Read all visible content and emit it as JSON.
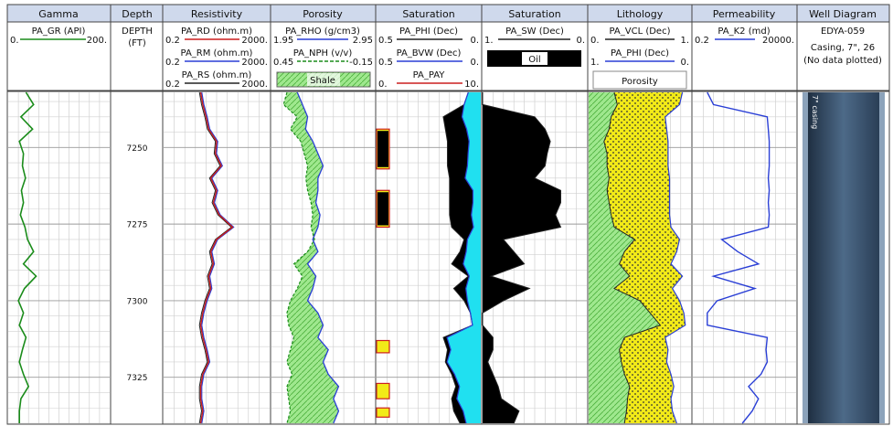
{
  "columns": [
    {
      "title": "Gamma"
    },
    {
      "title": "Depth"
    },
    {
      "title": "Resistivity"
    },
    {
      "title": "Porosity"
    },
    {
      "title": "Saturation"
    },
    {
      "title": "Saturation"
    },
    {
      "title": "Lithology"
    },
    {
      "title": "Permeability"
    },
    {
      "title": "Well Diagram"
    }
  ],
  "curves": {
    "gamma": [
      {
        "name": "PA_GR (API)",
        "min": "0.",
        "max": "200.",
        "color": "#1a8c1a"
      }
    ],
    "depth": {
      "line1": "DEPTH",
      "line2": "(FT)"
    },
    "resistivity": [
      {
        "name": "PA_RD (ohm.m)",
        "min": "0.2",
        "max": "2000.",
        "color": "#cc1f1f"
      },
      {
        "name": "PA_RM (ohm.m)",
        "min": "0.2",
        "max": "2000.",
        "color": "#2a3fd6"
      },
      {
        "name": "PA_RS (ohm.m)",
        "min": "0.2",
        "max": "2000.",
        "color": "#222222"
      }
    ],
    "porosity": [
      {
        "name": "PA_RHO (g/cm3)",
        "min": "1.95",
        "max": "2.95",
        "color": "#2a3fd6"
      },
      {
        "name": "PA_NPH (v/v)",
        "min": "0.45",
        "max": "-0.15",
        "color": "#1a8c1a"
      }
    ],
    "porosity_fill": "Shale",
    "saturation1": [
      {
        "name": "PA_PHI (Dec)",
        "min": "0.5",
        "max": "0.",
        "color": "#222222"
      },
      {
        "name": "PA_BVW (Dec)",
        "min": "0.5",
        "max": "0.",
        "color": "#2a3fd6"
      },
      {
        "name": "PA_PAY",
        "min": "0.",
        "max": "10.",
        "color": "#cc1f1f"
      }
    ],
    "saturation2": [
      {
        "name": "PA_SW (Dec)",
        "min": "1.",
        "max": "0.",
        "color": "#222222"
      }
    ],
    "saturation2_fill": "Oil",
    "lithology": [
      {
        "name": "PA_VCL (Dec)",
        "min": "0.",
        "max": "1.",
        "color": "#222222"
      },
      {
        "name": "PA_PHI (Dec)",
        "min": "1.",
        "max": "0.",
        "color": "#2a3fd6"
      }
    ],
    "lithology_fill": "Porosity",
    "permeability": [
      {
        "name": "PA_K2 (md)",
        "min": "0.2",
        "max": "20000.",
        "color": "#2a3fd6"
      }
    ],
    "well": {
      "name": "EDYA-059",
      "line2": "Casing, 7\", 26",
      "line3": "(No data plotted)",
      "label": "7\" casing"
    }
  },
  "colors": {
    "header_bg": "#cfd9ec",
    "gamma": "#1a8c1a",
    "rd": "#cc1f1f",
    "rm": "#2a3fd6",
    "rho": "#2a3fd6",
    "shale_fill": "#9fe88e",
    "sand_fill": "#f2ea18",
    "water": "#20e0f0",
    "oil": "#000000",
    "pay": "#cc1f1f",
    "casing": "#45607a"
  },
  "chart_data": {
    "type": "line",
    "title": "",
    "ylabel": "DEPTH (FT)",
    "ylim": [
      7232,
      7340
    ],
    "depth_ticks": [
      7250,
      7275,
      7300,
      7325
    ],
    "depth": [
      7232,
      7236,
      7240,
      7244,
      7248,
      7252,
      7256,
      7260,
      7264,
      7268,
      7272,
      7276,
      7280,
      7284,
      7288,
      7292,
      7296,
      7300,
      7304,
      7308,
      7312,
      7316,
      7320,
      7324,
      7328,
      7332,
      7336,
      7340
    ],
    "series": [
      {
        "name": "PA_GR (API)",
        "values": [
          35,
          50,
          25,
          48,
          22,
          30,
          28,
          34,
          26,
          30,
          24,
          33,
          38,
          50,
          30,
          55,
          32,
          20,
          30,
          22,
          35,
          28,
          22,
          30,
          40,
          25,
          22,
          22
        ]
      },
      {
        "name": "PA_RD (ohm.m)",
        "values": [
          5,
          6,
          8,
          10,
          20,
          18,
          30,
          12,
          20,
          15,
          25,
          80,
          20,
          12,
          15,
          10,
          12,
          8,
          6,
          5,
          6,
          8,
          10,
          6,
          5,
          5,
          6,
          5
        ]
      },
      {
        "name": "PA_RHO (g/cm3)",
        "values": [
          2.2,
          2.25,
          2.3,
          2.28,
          2.35,
          2.4,
          2.45,
          2.4,
          2.4,
          2.38,
          2.42,
          2.4,
          2.35,
          2.4,
          2.3,
          2.38,
          2.35,
          2.3,
          2.4,
          2.45,
          2.4,
          2.5,
          2.45,
          2.5,
          2.6,
          2.55,
          2.6,
          2.55
        ]
      },
      {
        "name": "PA_NPH (v/v)",
        "values": [
          0.36,
          0.38,
          0.3,
          0.34,
          0.28,
          0.26,
          0.24,
          0.25,
          0.24,
          0.22,
          0.21,
          0.22,
          0.2,
          0.24,
          0.32,
          0.27,
          0.3,
          0.34,
          0.36,
          0.35,
          0.32,
          0.34,
          0.36,
          0.33,
          0.36,
          0.35,
          0.34,
          0.36
        ]
      },
      {
        "name": "PA_PHI (Dec)",
        "values": [
          0.06,
          0.08,
          0.18,
          0.17,
          0.16,
          0.16,
          0.16,
          0.15,
          0.15,
          0.15,
          0.15,
          0.14,
          0.08,
          0.1,
          0.14,
          0.06,
          0.13,
          0.08,
          0.05,
          0.04,
          0.18,
          0.16,
          0.17,
          0.14,
          0.12,
          0.14,
          0.13,
          0.1
        ]
      },
      {
        "name": "PA_SW (Dec)",
        "values": [
          1.0,
          1.0,
          0.5,
          0.4,
          0.35,
          0.38,
          0.4,
          0.5,
          0.25,
          0.25,
          0.3,
          0.25,
          0.8,
          0.7,
          0.6,
          0.92,
          0.55,
          0.8,
          1.0,
          1.0,
          0.9,
          0.9,
          0.95,
          0.9,
          0.85,
          0.82,
          0.65,
          0.7
        ]
      },
      {
        "name": "PA_VCL (Dec)",
        "values": [
          0.25,
          0.28,
          0.22,
          0.2,
          0.15,
          0.18,
          0.18,
          0.2,
          0.18,
          0.2,
          0.22,
          0.25,
          0.45,
          0.35,
          0.3,
          0.4,
          0.25,
          0.5,
          0.6,
          0.7,
          0.35,
          0.3,
          0.32,
          0.35,
          0.4,
          0.38,
          0.37,
          0.35
        ]
      },
      {
        "name": "PA_K2 (md)",
        "values": [
          1,
          2,
          800,
          900,
          1000,
          1000,
          1000,
          900,
          1000,
          900,
          1000,
          900,
          5,
          30,
          300,
          2,
          200,
          3,
          1,
          1,
          800,
          700,
          800,
          400,
          100,
          300,
          150,
          50
        ]
      }
    ],
    "pay_intervals": [
      [
        7244,
        7257
      ],
      [
        7264,
        7276
      ],
      [
        7313,
        7317
      ],
      [
        7327,
        7332
      ],
      [
        7335,
        7338
      ]
    ],
    "grid": true
  }
}
